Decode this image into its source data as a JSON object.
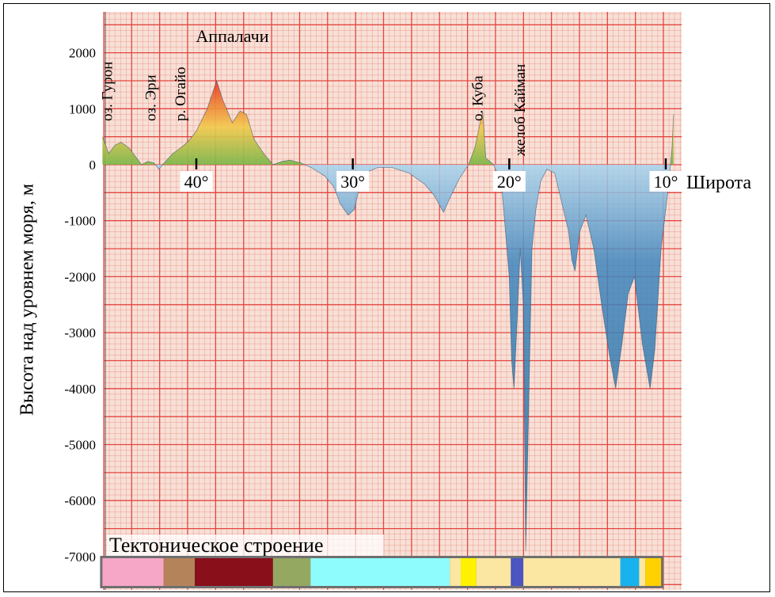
{
  "chart_data": {
    "type": "area",
    "ylabel": "Высота над уровнем моря, м",
    "xlabel": "Широта",
    "xlim": [
      46,
      9.5
    ],
    "ylim": [
      -7000,
      2300
    ],
    "y_ticks": [
      2000,
      1000,
      0,
      -1000,
      -2000,
      -3000,
      -4000,
      -5000,
      -6000,
      -7000
    ],
    "x_ticks": [
      40,
      30,
      20,
      10
    ],
    "x_tick_labels": [
      "40°",
      "30°",
      "20°",
      "10°"
    ],
    "grid": true,
    "grid_color": "#e2302b",
    "paper_color": "#f7e0d6",
    "land_colors": [
      "#7ab648",
      "#f2c94c",
      "#e83a22"
    ],
    "sea_colors": [
      "#a9d4ee",
      "#3f86be",
      "#2b6e9e"
    ],
    "annotations": [
      {
        "text": "оз. Гурон",
        "x": 45.4,
        "rotate": true
      },
      {
        "text": "оз. Эри",
        "x": 42.6,
        "rotate": true
      },
      {
        "text": "р. Огайо",
        "x": 40.7,
        "rotate": true
      },
      {
        "text": "Аппалачи",
        "x": 37.7,
        "rotate": false
      },
      {
        "text": "о. Куба",
        "x": 21.7,
        "rotate": true
      },
      {
        "text": "желоб Кайман",
        "x": 19.0,
        "rotate": true
      }
    ],
    "profile": [
      [
        46.0,
        500
      ],
      [
        45.6,
        200
      ],
      [
        45.2,
        350
      ],
      [
        44.8,
        400
      ],
      [
        44.3,
        300
      ],
      [
        43.9,
        150
      ],
      [
        43.5,
        0
      ],
      [
        43.1,
        60
      ],
      [
        42.7,
        30
      ],
      [
        42.4,
        -80
      ],
      [
        42.0,
        50
      ],
      [
        41.5,
        200
      ],
      [
        41.0,
        300
      ],
      [
        40.5,
        420
      ],
      [
        40.0,
        600
      ],
      [
        39.3,
        1000
      ],
      [
        38.7,
        1500
      ],
      [
        38.3,
        1150
      ],
      [
        37.7,
        750
      ],
      [
        37.2,
        960
      ],
      [
        36.8,
        900
      ],
      [
        36.3,
        450
      ],
      [
        35.7,
        200
      ],
      [
        35.1,
        0
      ],
      [
        34.5,
        60
      ],
      [
        34.0,
        80
      ],
      [
        33.3,
        30
      ],
      [
        32.6,
        -60
      ],
      [
        31.8,
        -200
      ],
      [
        31.2,
        -400
      ],
      [
        30.8,
        -700
      ],
      [
        30.3,
        -900
      ],
      [
        29.9,
        -800
      ],
      [
        29.5,
        -320
      ],
      [
        29.0,
        -120
      ],
      [
        28.4,
        -50
      ],
      [
        27.5,
        -50
      ],
      [
        26.4,
        -150
      ],
      [
        25.4,
        -350
      ],
      [
        24.8,
        -550
      ],
      [
        24.2,
        -850
      ],
      [
        23.8,
        -600
      ],
      [
        23.2,
        -250
      ],
      [
        22.6,
        0
      ],
      [
        22.2,
        300
      ],
      [
        21.9,
        700
      ],
      [
        21.7,
        950
      ],
      [
        21.5,
        120
      ],
      [
        21.0,
        0
      ],
      [
        20.5,
        -350
      ],
      [
        20.3,
        -1000
      ],
      [
        20.0,
        -2000
      ],
      [
        19.85,
        -3500
      ],
      [
        19.7,
        -4000
      ],
      [
        19.5,
        -2800
      ],
      [
        19.3,
        -1500
      ],
      [
        19.1,
        -2500
      ],
      [
        18.95,
        -6900
      ],
      [
        18.75,
        -4200
      ],
      [
        18.55,
        -1500
      ],
      [
        18.3,
        -800
      ],
      [
        18.0,
        -300
      ],
      [
        17.6,
        -80
      ],
      [
        17.1,
        -150
      ],
      [
        16.8,
        -500
      ],
      [
        16.2,
        -1200
      ],
      [
        16.0,
        -1700
      ],
      [
        15.8,
        -1900
      ],
      [
        15.5,
        -1200
      ],
      [
        15.1,
        -900
      ],
      [
        14.6,
        -1500
      ],
      [
        14.1,
        -2500
      ],
      [
        13.6,
        -3400
      ],
      [
        13.2,
        -4000
      ],
      [
        12.8,
        -3200
      ],
      [
        12.4,
        -2300
      ],
      [
        12.0,
        -2000
      ],
      [
        11.5,
        -3200
      ],
      [
        11.0,
        -4000
      ],
      [
        10.7,
        -3300
      ],
      [
        10.3,
        -1500
      ],
      [
        10.0,
        -800
      ],
      [
        9.8,
        -300
      ],
      [
        9.6,
        300
      ],
      [
        9.5,
        900
      ]
    ],
    "tectonic": {
      "title": "Тектоническое строение",
      "segments": [
        {
          "from": 46.0,
          "to": 42.1,
          "color": "#f6a6c7"
        },
        {
          "from": 42.1,
          "to": 40.1,
          "color": "#b5835a"
        },
        {
          "from": 40.1,
          "to": 35.1,
          "color": "#890f1b"
        },
        {
          "from": 35.1,
          "to": 32.7,
          "color": "#95a862"
        },
        {
          "from": 32.7,
          "to": 23.8,
          "color": "#8efcfc"
        },
        {
          "from": 23.8,
          "to": 23.1,
          "color": "#fbe6a2"
        },
        {
          "from": 23.1,
          "to": 22.1,
          "color": "#fff200"
        },
        {
          "from": 22.1,
          "to": 19.9,
          "color": "#fbe6a2"
        },
        {
          "from": 19.9,
          "to": 19.1,
          "color": "#4a55c2"
        },
        {
          "from": 19.1,
          "to": 12.9,
          "color": "#fbe6a2"
        },
        {
          "from": 12.9,
          "to": 11.7,
          "color": "#18b3ef"
        },
        {
          "from": 11.7,
          "to": 11.3,
          "color": "#fbe6a2"
        },
        {
          "from": 11.3,
          "to": 10.3,
          "color": "#ffd100"
        }
      ]
    }
  }
}
